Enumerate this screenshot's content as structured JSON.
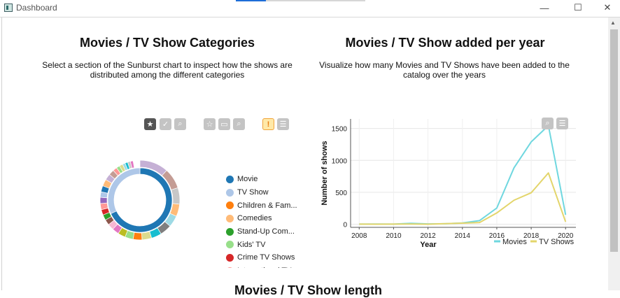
{
  "window": {
    "title": "Dashboard",
    "minimize": "—",
    "maximize": "☐",
    "close": "✕"
  },
  "sunburst_panel": {
    "title": "Movies / TV Show Categories",
    "subtitle_line1": "Select a section of the Sunburst chart to inspect how the shows are",
    "subtitle_line2": "distributed among the different categories",
    "legend": [
      {
        "label": "Movie",
        "color": "#1f77b4"
      },
      {
        "label": "TV Show",
        "color": "#aec7e8"
      },
      {
        "label": "Children & Fam...",
        "color": "#ff7f0e"
      },
      {
        "label": "Comedies",
        "color": "#ffbb78"
      },
      {
        "label": "Stand-Up Com...",
        "color": "#2ca02c"
      },
      {
        "label": "Kids' TV",
        "color": "#98df8a"
      },
      {
        "label": "Crime TV Shows",
        "color": "#d62728"
      },
      {
        "label": "International TV...",
        "color": "#ff9896"
      }
    ],
    "toolbar_icons": [
      "star-icon",
      "check-icon",
      "zoom-icon",
      "star-outline-icon",
      "select-icon",
      "zoom-icon",
      "warning-icon",
      "menu-icon"
    ]
  },
  "line_panel": {
    "title": "Movies / TV Show added per year",
    "subtitle_line1": "Visualize how many Movies and TV Shows have been added to the",
    "subtitle_line2": "catalog over the years"
  },
  "chart_data": {
    "type": "line",
    "xlabel": "Year",
    "ylabel": "Number of shows",
    "xlim": [
      2007.5,
      2020.6
    ],
    "ylim": [
      -50,
      1650
    ],
    "xticks": [
      "2008",
      "2010",
      "2012",
      "2014",
      "2016",
      "2018",
      "2020"
    ],
    "yticks": [
      "0",
      "500",
      "1000",
      "1500"
    ],
    "x": [
      2008,
      2009,
      2010,
      2011,
      2012,
      2013,
      2014,
      2015,
      2016,
      2017,
      2018,
      2019,
      2020
    ],
    "series": [
      {
        "name": "Movies",
        "color": "#6fd7df",
        "values": [
          1,
          2,
          1,
          13,
          3,
          6,
          19,
          56,
          253,
          883,
          1290,
          1546,
          147
        ]
      },
      {
        "name": "TV Shows",
        "color": "#e3d56b",
        "values": [
          1,
          0,
          1,
          2,
          0,
          7,
          16,
          26,
          176,
          375,
          492,
          803,
          37
        ]
      }
    ],
    "grid": true,
    "legend_position": "bottom-right"
  },
  "bottom_section": {
    "title": "Movies / TV Show length"
  }
}
